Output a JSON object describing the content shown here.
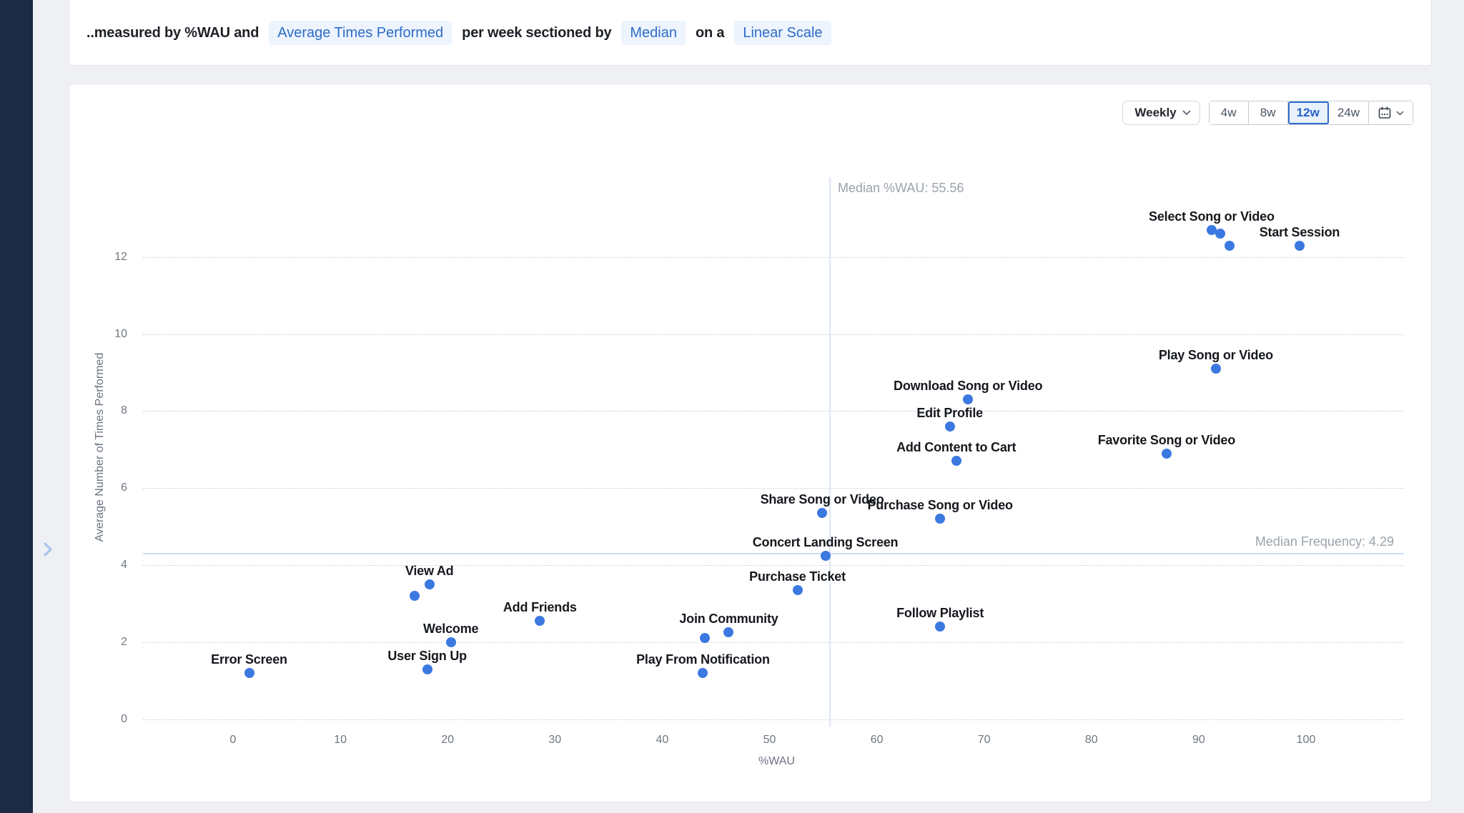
{
  "colors": {
    "sidebar_navy": "#1c2a44",
    "page_bg": "#eef0f3",
    "card_bg": "#ffffff",
    "accent_blue": "#2e6bc8",
    "dot_blue": "#3b79e1",
    "pill_bg": "#edf4fd",
    "active_range_bg": "#e9f1fc",
    "median_vline": "#dde6f2",
    "median_hline": "#cbdff4",
    "gridline": "#c7ced9"
  },
  "topbar": {
    "prefix": "..measured by %WAU and",
    "metric": "Average Times Performed",
    "section_text": "per week sectioned by",
    "section_value": "Median",
    "scale_text": "on a",
    "scale_value": "Linear Scale"
  },
  "controls": {
    "granularity": "Weekly",
    "ranges": [
      "4w",
      "8w",
      "12w",
      "24w"
    ],
    "active_range": "12w"
  },
  "chart_data": {
    "type": "scatter",
    "title": "",
    "xlabel": "%WAU",
    "ylabel": "Average Number of Times Performed",
    "x_ticks": [
      0,
      10,
      20,
      30,
      40,
      50,
      60,
      70,
      80,
      90,
      100
    ],
    "y_ticks": [
      0,
      2,
      4,
      6,
      8,
      10,
      12
    ],
    "xlim": [
      -8,
      109
    ],
    "ylim": [
      0,
      14
    ],
    "grid": "horizontal dotted gridlines only",
    "legend": "none",
    "median_x": {
      "value": 55.56,
      "label": "Median %WAU: 55.56"
    },
    "median_y": {
      "value": 4.29,
      "label": "Median Frequency: 4.29"
    },
    "points": [
      {
        "label": "Select Song or Video",
        "x": 91.2,
        "y": 12.7
      },
      {
        "label": "",
        "x": 92.0,
        "y": 12.6
      },
      {
        "label": "",
        "x": 92.9,
        "y": 12.3
      },
      {
        "label": "Start Session",
        "x": 99.4,
        "y": 12.3
      },
      {
        "label": "Play Song or Video",
        "x": 91.6,
        "y": 9.1
      },
      {
        "label": "Download Song or Video",
        "x": 68.5,
        "y": 8.3
      },
      {
        "label": "Edit Profile",
        "x": 66.8,
        "y": 7.6
      },
      {
        "label": "Add Content to Cart",
        "x": 67.4,
        "y": 6.7
      },
      {
        "label": "Favorite Song or Video",
        "x": 87.0,
        "y": 6.9
      },
      {
        "label": "Share Song or Video",
        "x": 54.9,
        "y": 5.35
      },
      {
        "label": "Purchase Song or Video",
        "x": 65.9,
        "y": 5.2
      },
      {
        "label": "Concert Landing Screen",
        "x": 55.2,
        "y": 4.25
      },
      {
        "label": "Purchase Ticket",
        "x": 52.6,
        "y": 3.35
      },
      {
        "label": "View Ad",
        "x": 18.3,
        "y": 3.5
      },
      {
        "label": "",
        "x": 16.9,
        "y": 3.2
      },
      {
        "label": "Add Friends",
        "x": 28.6,
        "y": 2.55
      },
      {
        "label": "Follow Playlist",
        "x": 65.9,
        "y": 2.4
      },
      {
        "label": "Join Community",
        "x": 46.2,
        "y": 2.25
      },
      {
        "label": "",
        "x": 44.0,
        "y": 2.1
      },
      {
        "label": "Welcome",
        "x": 20.3,
        "y": 2.0
      },
      {
        "label": "User Sign Up",
        "x": 18.1,
        "y": 1.3
      },
      {
        "label": "Play From Notification",
        "x": 43.8,
        "y": 1.2
      },
      {
        "label": "Error Screen",
        "x": 1.5,
        "y": 1.2
      }
    ]
  }
}
